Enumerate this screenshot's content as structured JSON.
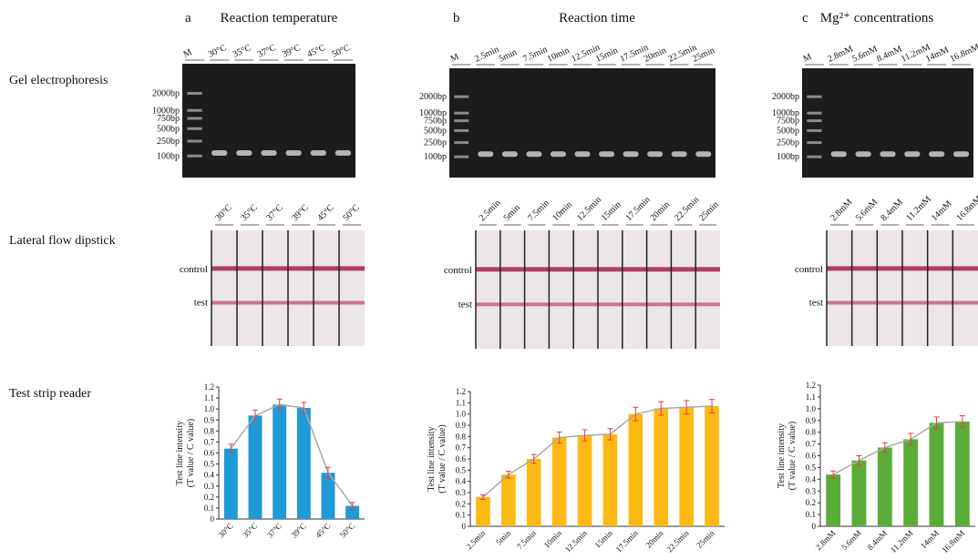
{
  "row_labels": [
    "Gel electrophoresis",
    "Lateral flow dipstick",
    "Test strip reader"
  ],
  "ladder": [
    "2000bp",
    "1000bp",
    "750bp",
    "500bp",
    "250bp",
    "100bp"
  ],
  "strip_labels": [
    "control",
    "test"
  ],
  "panels": [
    {
      "letter": "a",
      "title": "Reaction temperature",
      "lanes": [
        "M",
        "30°C",
        "35°C",
        "37°C",
        "39°C",
        "45°C",
        "50°C"
      ]
    },
    {
      "letter": "b",
      "title": "Reaction time",
      "lanes": [
        "M",
        "2.5min",
        "5min",
        "7.5min",
        "10min",
        "12.5min",
        "15min",
        "17.5min",
        "20min",
        "22.5min",
        "25min"
      ]
    },
    {
      "letter": "c",
      "title": "Mg²⁺ concentrations",
      "lanes": [
        "M",
        "2.8mM",
        "5.6mM",
        "8.4mM",
        "11.2mM",
        "14mM",
        "16.8mM"
      ]
    }
  ],
  "chart_data": [
    {
      "type": "bar",
      "ylabel": [
        "Test line intensity",
        "(T value / C value)"
      ],
      "categories": [
        "30°C",
        "35°C",
        "37°C",
        "39°C",
        "45°C",
        "50°C"
      ],
      "values": [
        0.64,
        0.94,
        1.04,
        1.01,
        0.42,
        0.12
      ],
      "errors": [
        0.04,
        0.05,
        0.05,
        0.05,
        0.05,
        0.03
      ],
      "color": "#1f9ad6",
      "error_color": "#e8403a",
      "line": true,
      "line_color": "#aaaaaa",
      "ylim": [
        0,
        1.2
      ],
      "yticks": [
        0,
        0.1,
        0.2,
        0.3,
        0.4,
        0.5,
        0.6,
        0.7,
        0.8,
        0.9,
        {
          "value": 1,
          "label": "1.0"
        },
        1.1,
        1.2
      ]
    },
    {
      "type": "bar",
      "ylabel": [
        "Test line intensity",
        "(T value / C value)"
      ],
      "categories": [
        "2.5min",
        "5min",
        "7.5min",
        "10min",
        "12.5min",
        "15min",
        "17.5min",
        "20min",
        "22.5min",
        "25min"
      ],
      "values": [
        0.26,
        0.46,
        0.6,
        0.79,
        0.81,
        0.82,
        1.0,
        1.05,
        1.06,
        1.07
      ],
      "errors": [
        0.02,
        0.03,
        0.04,
        0.05,
        0.05,
        0.05,
        0.06,
        0.06,
        0.06,
        0.06
      ],
      "color": "#fdb913",
      "error_color": "#e8403a",
      "line": true,
      "line_color": "#aaaaaa",
      "ylim": [
        0,
        1.2
      ],
      "yticks": [
        0,
        0.1,
        0.2,
        0.3,
        0.4,
        0.5,
        0.6,
        0.7,
        0.8,
        0.9,
        {
          "value": 1,
          "label": "1.0"
        },
        1.1,
        1.2
      ]
    },
    {
      "type": "bar",
      "ylabel": [
        "Test line intensity",
        "(T value / C value)"
      ],
      "categories": [
        "2.8mM",
        "5.6mM",
        "8.4mM",
        "11.2mM",
        "14mM",
        "16.8mM"
      ],
      "values": [
        0.44,
        0.56,
        0.67,
        0.74,
        0.88,
        0.89
      ],
      "errors": [
        0.03,
        0.04,
        0.04,
        0.05,
        0.05,
        0.05
      ],
      "color": "#5aac3a",
      "error_color": "#e8403a",
      "line": true,
      "line_color": "#aaaaaa",
      "ylim": [
        0,
        1.2
      ],
      "yticks": [
        0,
        0.1,
        0.2,
        0.3,
        0.4,
        0.5,
        0.6,
        0.7,
        0.8,
        0.9,
        {
          "value": 1,
          "label": "1.0"
        },
        1.1,
        1.2
      ]
    }
  ]
}
